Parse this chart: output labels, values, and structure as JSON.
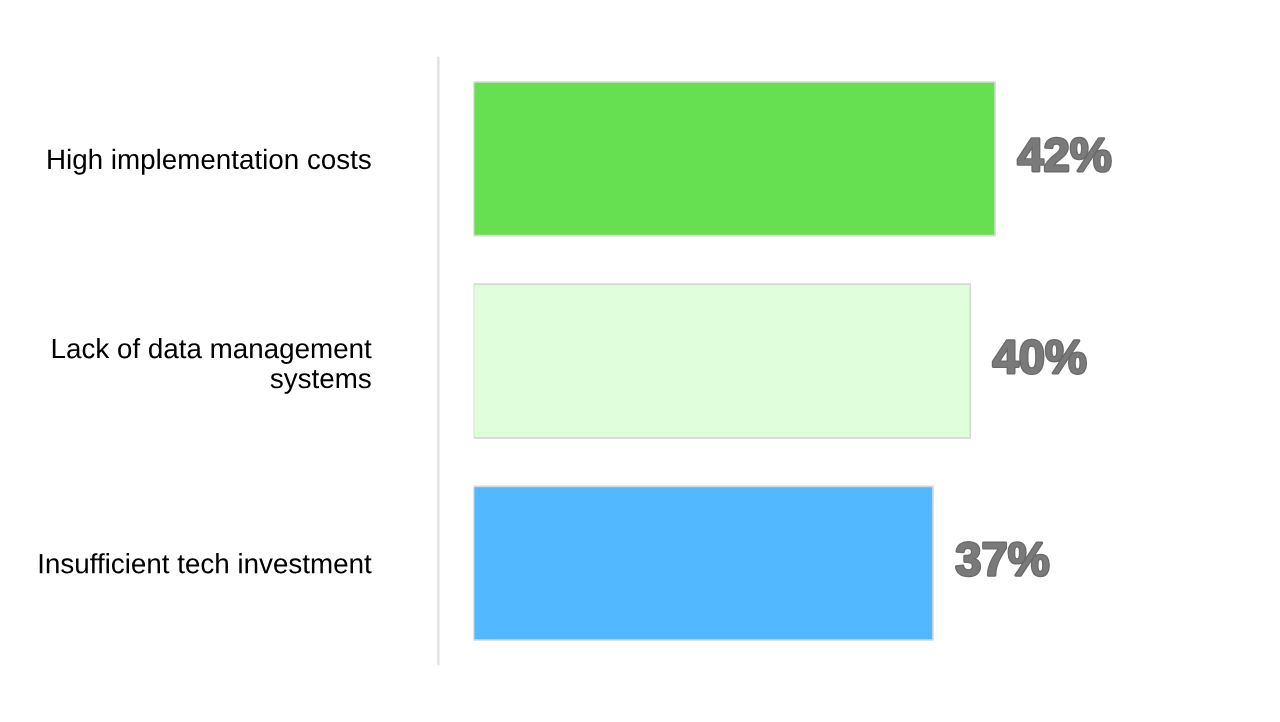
{
  "chart_data": {
    "type": "bar",
    "orientation": "horizontal",
    "categories": [
      "High implementation costs",
      "Lack of data management\nsystems",
      "Insufficient tech investment"
    ],
    "values": [
      42,
      40,
      37
    ],
    "value_labels": [
      "42%",
      "40%",
      "37%"
    ],
    "colors": [
      "#66e050",
      "#e0fddc",
      "#52b8ff"
    ],
    "grid": false,
    "legend": false
  }
}
